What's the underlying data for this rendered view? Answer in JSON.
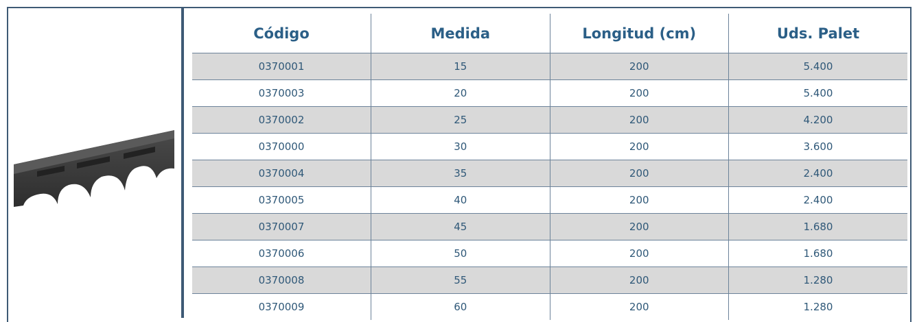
{
  "table": {
    "columns": [
      "Código",
      "Medida",
      "Longitud (cm)",
      "Uds. Palet"
    ],
    "rows": [
      [
        "0370001",
        "15",
        "200",
        "5.400"
      ],
      [
        "0370003",
        "20",
        "200",
        "5.400"
      ],
      [
        "0370002",
        "25",
        "200",
        "4.200"
      ],
      [
        "0370000",
        "30",
        "200",
        "3.600"
      ],
      [
        "0370004",
        "35",
        "200",
        "2.400"
      ],
      [
        "0370005",
        "40",
        "200",
        "2.400"
      ],
      [
        "0370007",
        "45",
        "200",
        "1.680"
      ],
      [
        "0370006",
        "50",
        "200",
        "1.680"
      ],
      [
        "0370008",
        "55",
        "200",
        "1.280"
      ],
      [
        "0370009",
        "60",
        "200",
        "1.280"
      ]
    ]
  }
}
